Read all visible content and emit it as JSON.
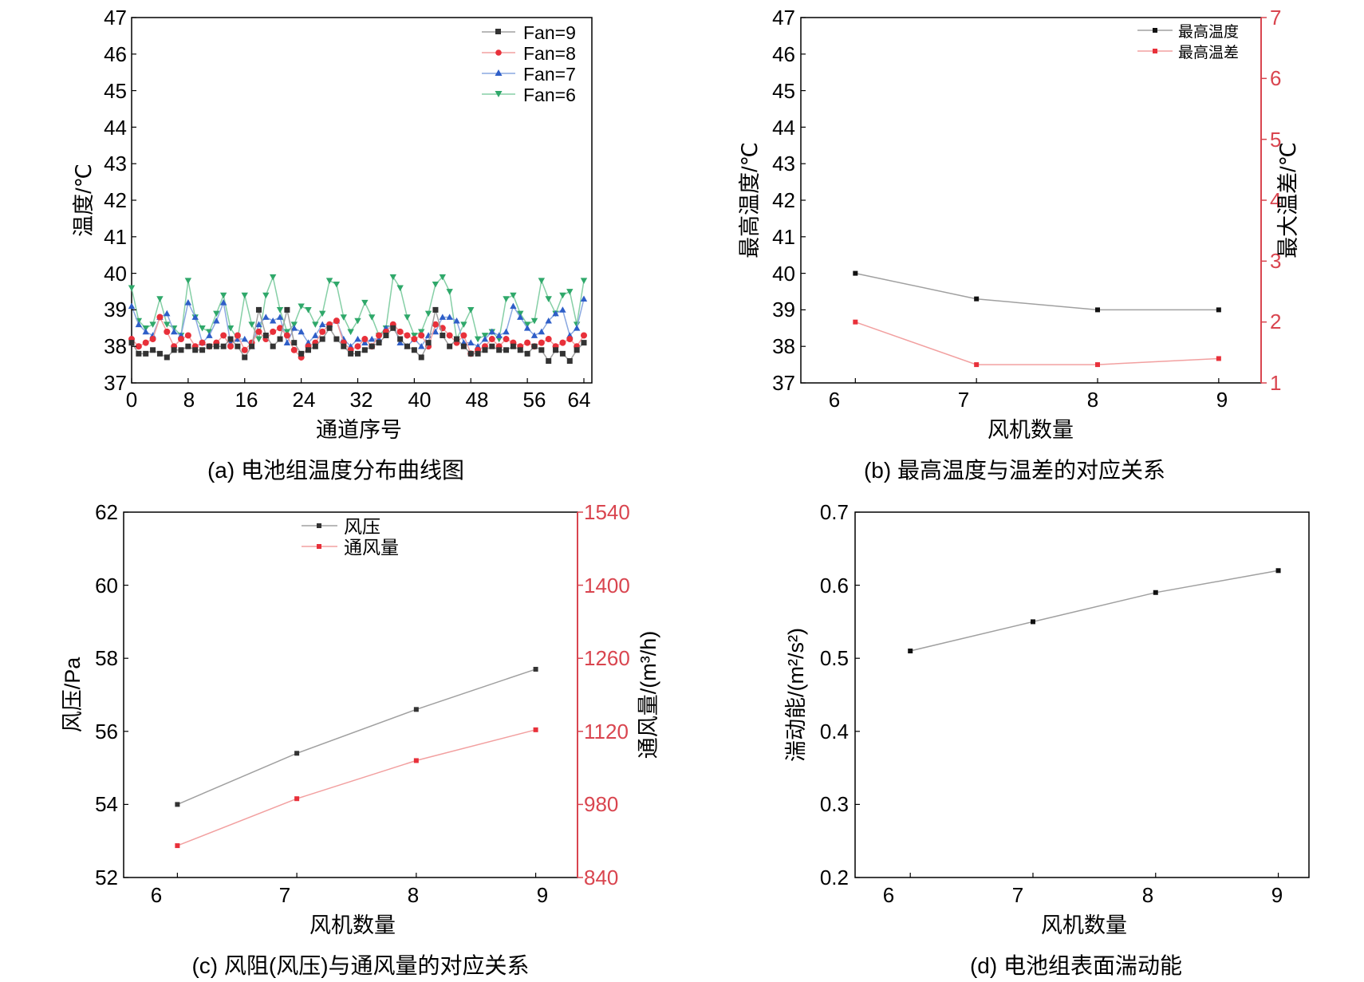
{
  "colors": {
    "axis": "#000000",
    "right_axis": "#d9454f",
    "black_line": "#a0a0a0",
    "black_marker": "#333333",
    "red_line": "#f2a0a0",
    "red_marker": "#e8303a",
    "blue_line": "#8aa8e0",
    "blue_marker": "#2e5ec8",
    "green_line": "#86cfa6",
    "green_marker": "#2fa86a"
  },
  "chart_data": [
    {
      "type": "line",
      "caption": "(a) 电池组温度分布曲线图",
      "xlabel": "通道序号",
      "ylabel": "温度/℃",
      "xlim": [
        0,
        64
      ],
      "ylim": [
        37,
        47
      ],
      "xticks": [
        "0",
        "8",
        "16",
        "24",
        "32",
        "40",
        "48",
        "56",
        "64"
      ],
      "yticks": [
        "37",
        "38",
        "39",
        "40",
        "41",
        "42",
        "43",
        "44",
        "45",
        "46",
        "47"
      ],
      "legend_position": "top-right",
      "x": [
        0,
        1,
        2,
        3,
        4,
        5,
        6,
        7,
        8,
        9,
        10,
        11,
        12,
        13,
        14,
        15,
        16,
        17,
        18,
        19,
        20,
        21,
        22,
        23,
        24,
        25,
        26,
        27,
        28,
        29,
        30,
        31,
        32,
        33,
        34,
        35,
        36,
        37,
        38,
        39,
        40,
        41,
        42,
        43,
        44,
        45,
        46,
        47,
        48,
        49,
        50,
        51,
        52,
        53,
        54,
        55,
        56,
        57,
        58,
        59,
        60,
        61,
        62,
        63,
        64
      ],
      "series": [
        {
          "name": "Fan=9",
          "marker": "square",
          "values": [
            38.1,
            37.8,
            37.8,
            37.9,
            37.8,
            37.7,
            37.9,
            37.9,
            38.0,
            37.9,
            37.9,
            38.0,
            38.0,
            38.0,
            38.2,
            38.0,
            37.7,
            38.0,
            39.0,
            38.3,
            38.0,
            38.2,
            39.0,
            38.1,
            37.8,
            37.9,
            38.0,
            38.2,
            38.5,
            38.2,
            38.0,
            37.8,
            37.8,
            37.9,
            38.0,
            38.1,
            38.3,
            38.5,
            38.2,
            38.0,
            37.9,
            37.7,
            38.1,
            39.0,
            38.3,
            38.0,
            38.2,
            38.0,
            37.8,
            37.8,
            37.9,
            38.0,
            37.9,
            37.9,
            38.0,
            37.9,
            37.8,
            38.0,
            37.9,
            37.6,
            37.9,
            37.8,
            37.6,
            37.9,
            38.1
          ]
        },
        {
          "name": "Fan=8",
          "marker": "circle",
          "values": [
            38.2,
            38.0,
            38.1,
            38.2,
            38.8,
            38.4,
            38.0,
            38.2,
            38.3,
            38.0,
            38.1,
            38.0,
            38.1,
            38.3,
            38.0,
            38.3,
            37.9,
            38.1,
            38.4,
            38.2,
            38.4,
            38.5,
            38.3,
            37.9,
            37.7,
            38.0,
            38.1,
            38.4,
            38.6,
            38.7,
            38.1,
            37.9,
            38.0,
            38.2,
            38.0,
            38.3,
            38.4,
            38.6,
            38.4,
            38.3,
            38.2,
            38.3,
            38.0,
            38.6,
            38.5,
            38.3,
            38.1,
            38.3,
            37.8,
            37.9,
            38.0,
            38.2,
            38.0,
            38.2,
            38.1,
            38.0,
            38.1,
            38.0,
            38.1,
            38.2,
            38.0,
            38.1,
            38.2,
            38.0,
            38.3
          ]
        },
        {
          "name": "Fan=7",
          "marker": "triangle-up",
          "values": [
            39.1,
            38.6,
            38.4,
            38.3,
            38.8,
            38.9,
            38.4,
            38.3,
            39.2,
            38.8,
            38.1,
            38.3,
            38.7,
            39.2,
            38.1,
            38.2,
            38.2,
            38.0,
            38.6,
            38.8,
            38.7,
            38.8,
            38.1,
            38.5,
            38.4,
            38.1,
            38.3,
            38.6,
            38.6,
            38.7,
            38.2,
            38.0,
            38.2,
            38.1,
            38.2,
            38.2,
            38.5,
            38.6,
            38.1,
            38.0,
            38.2,
            38.0,
            38.3,
            38.4,
            38.8,
            38.8,
            38.7,
            38.1,
            38.1,
            38.0,
            38.2,
            38.4,
            38.3,
            38.4,
            39.1,
            38.8,
            38.5,
            38.3,
            38.4,
            38.7,
            38.9,
            39.0,
            38.3,
            38.5,
            39.3
          ]
        },
        {
          "name": "Fan=6",
          "marker": "triangle-down",
          "values": [
            39.6,
            38.7,
            38.5,
            38.6,
            39.3,
            38.6,
            38.5,
            38.3,
            39.8,
            38.8,
            38.5,
            38.4,
            38.9,
            39.4,
            38.5,
            38.2,
            39.4,
            38.6,
            38.2,
            39.4,
            39.9,
            39.0,
            38.4,
            38.6,
            39.1,
            39.0,
            38.6,
            38.9,
            39.8,
            39.7,
            38.8,
            38.4,
            38.7,
            39.2,
            38.8,
            38.3,
            38.5,
            39.9,
            39.6,
            38.8,
            38.3,
            38.4,
            38.9,
            39.7,
            39.9,
            39.5,
            38.2,
            38.6,
            39.0,
            38.2,
            38.3,
            38.4,
            38.2,
            39.3,
            39.4,
            38.9,
            38.6,
            38.7,
            39.8,
            39.3,
            38.9,
            39.4,
            39.5,
            38.6,
            39.8
          ]
        }
      ]
    },
    {
      "type": "line",
      "caption": "(b) 最高温度与温差的对应关系",
      "xlabel": "风机数量",
      "ylabel_left": "最高温度/℃",
      "ylabel_right": "最大温差/℃",
      "categories": [
        "6",
        "7",
        "8",
        "9"
      ],
      "xlim": [
        5.55,
        9.35
      ],
      "ylim_left": [
        37,
        47
      ],
      "ylim_right": [
        1,
        7
      ],
      "yticks_left": [
        "37",
        "38",
        "39",
        "40",
        "41",
        "42",
        "43",
        "44",
        "45",
        "46",
        "47"
      ],
      "yticks_right": [
        "1",
        "2",
        "3",
        "4",
        "5",
        "6",
        "7"
      ],
      "legend_position": "top-right",
      "series": [
        {
          "name": "最高温度",
          "axis": "left",
          "values": [
            40.0,
            39.3,
            39.0,
            39.0
          ]
        },
        {
          "name": "最高温差",
          "axis": "right",
          "values": [
            2.0,
            1.3,
            1.3,
            1.4
          ]
        }
      ]
    },
    {
      "type": "line",
      "caption": "(c) 风阻(风压)与通风量的对应关系",
      "xlabel": "风机数量",
      "ylabel_left": "风压/Pa",
      "ylabel_right": "通风量/(m³/h)",
      "categories": [
        "6",
        "7",
        "8",
        "9"
      ],
      "xlim": [
        5.55,
        9.35
      ],
      "ylim_left": [
        52,
        62
      ],
      "ylim_right": [
        840,
        1540
      ],
      "yticks_left": [
        "52",
        "54",
        "56",
        "58",
        "60",
        "62"
      ],
      "yticks_right": [
        "840",
        "980",
        "1120",
        "1260",
        "1400",
        "1540"
      ],
      "legend_position": "top-center",
      "series": [
        {
          "name": "风压",
          "axis": "left",
          "values": [
            54.0,
            55.4,
            56.6,
            57.7
          ]
        },
        {
          "name": "通风量",
          "axis": "right",
          "values": [
            901,
            991,
            1064,
            1123
          ]
        }
      ]
    },
    {
      "type": "line",
      "caption": "(d) 电池组表面湍动能",
      "xlabel": "风机数量",
      "ylabel": "湍动能/(m²/s²)",
      "categories": [
        "6",
        "7",
        "8",
        "9"
      ],
      "xlim": [
        5.55,
        9.25
      ],
      "ylim": [
        0.2,
        0.7
      ],
      "yticks": [
        "0.2",
        "0.3",
        "0.4",
        "0.5",
        "0.6",
        "0.7"
      ],
      "series": [
        {
          "name": "湍动能",
          "values": [
            0.51,
            0.55,
            0.59,
            0.62
          ]
        }
      ]
    }
  ]
}
